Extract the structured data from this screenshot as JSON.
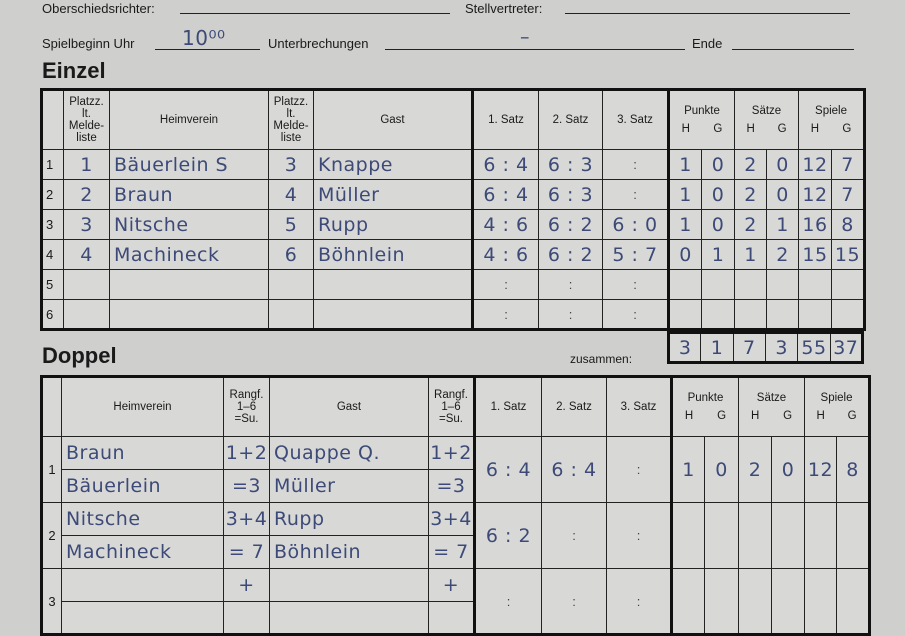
{
  "header": {
    "referee_label": "Oberschiedsrichter:",
    "deputy_label": "Stellvertreter:",
    "start_label": "Spielbeginn Uhr",
    "start_value": "10⁰⁰",
    "interruptions_label": "Unterbrechungen",
    "interruptions_value": "–",
    "end_label": "Ende"
  },
  "einzel": {
    "title": "Einzel",
    "columns": {
      "rank": "Platzz. lt. Melde- liste",
      "home": "Heimverein",
      "guest": "Gast",
      "set1": "1. Satz",
      "set2": "2. Satz",
      "set3": "3. Satz",
      "punkte": "Punkte",
      "saetze": "Sätze",
      "spiele": "Spiele",
      "h": "H",
      "g": "G"
    },
    "rows": [
      {
        "no": "1",
        "home_rank": "1",
        "home": "Bäuerlein S",
        "guest_rank": "3",
        "guest": "Knappe",
        "sets": [
          "6 : 4",
          "6 : 3",
          ":"
        ],
        "punkte": [
          "1",
          "0"
        ],
        "saetze": [
          "2",
          "0"
        ],
        "spiele": [
          "12",
          "7"
        ]
      },
      {
        "no": "2",
        "home_rank": "2",
        "home": "Braun",
        "guest_rank": "4",
        "guest": "Müller",
        "sets": [
          "6 : 4",
          "6 : 3",
          ":"
        ],
        "punkte": [
          "1",
          "0"
        ],
        "saetze": [
          "2",
          "0"
        ],
        "spiele": [
          "12",
          "7"
        ]
      },
      {
        "no": "3",
        "home_rank": "3",
        "home": "Nitsche",
        "guest_rank": "5",
        "guest": "Rupp",
        "sets": [
          "4 : 6",
          "6 : 2",
          "6 : 0"
        ],
        "punkte": [
          "1",
          "0"
        ],
        "saetze": [
          "2",
          "1"
        ],
        "spiele": [
          "16",
          "8"
        ]
      },
      {
        "no": "4",
        "home_rank": "4",
        "home": "Machineck",
        "guest_rank": "6",
        "guest": "Böhnlein",
        "sets": [
          "4 : 6",
          "6 : 2",
          "5 : 7"
        ],
        "punkte": [
          "0",
          "1"
        ],
        "saetze": [
          "1",
          "2"
        ],
        "spiele": [
          "15",
          "15"
        ]
      },
      {
        "no": "5",
        "home_rank": "",
        "home": "",
        "guest_rank": "",
        "guest": "",
        "sets": [
          ":",
          ":",
          ":"
        ],
        "punkte": [
          "",
          ""
        ],
        "saetze": [
          "",
          ""
        ],
        "spiele": [
          "",
          ""
        ]
      },
      {
        "no": "6",
        "home_rank": "",
        "home": "",
        "guest_rank": "",
        "guest": "",
        "sets": [
          ":",
          ":",
          ":"
        ],
        "punkte": [
          "",
          ""
        ],
        "saetze": [
          "",
          ""
        ],
        "spiele": [
          "",
          ""
        ]
      }
    ],
    "total_label": "zusammen:",
    "totals": [
      "3",
      "1",
      "7",
      "3",
      "55",
      "37"
    ]
  },
  "doppel": {
    "title": "Doppel",
    "columns": {
      "home": "Heimverein",
      "rank": "Rangf. 1–6 =Su.",
      "guest": "Gast",
      "set1": "1. Satz",
      "set2": "2. Satz",
      "set3": "3. Satz",
      "punkte": "Punkte",
      "saetze": "Sätze",
      "spiele": "Spiele",
      "h": "H",
      "g": "G"
    },
    "rows": [
      {
        "no": "1",
        "home": [
          "Braun",
          "Bäuerlein"
        ],
        "home_rank": [
          "1+2",
          "=3"
        ],
        "guest": [
          "Quappe Q.",
          "Müller"
        ],
        "guest_rank": [
          "1+2",
          "=3"
        ],
        "sets": [
          "6 : 4",
          "6 : 4",
          ":"
        ],
        "punkte": [
          "1",
          "0"
        ],
        "saetze": [
          "2",
          "0"
        ],
        "spiele": [
          "12",
          "8"
        ]
      },
      {
        "no": "2",
        "home": [
          "Nitsche",
          "Machineck"
        ],
        "home_rank": [
          "3+4",
          "= 7"
        ],
        "guest": [
          "Rupp",
          "Böhnlein"
        ],
        "guest_rank": [
          "3+4",
          "= 7"
        ],
        "sets": [
          "6 : 2",
          ":",
          ":"
        ],
        "punkte": [
          "",
          ""
        ],
        "saetze": [
          "",
          ""
        ],
        "spiele": [
          "",
          ""
        ]
      },
      {
        "no": "3",
        "home": [
          "",
          ""
        ],
        "home_rank": [
          "+",
          ""
        ],
        "guest": [
          "",
          ""
        ],
        "guest_rank": [
          "+",
          ""
        ],
        "sets": [
          ":",
          ":",
          ":"
        ],
        "punkte": [
          "",
          ""
        ],
        "saetze": [
          "",
          ""
        ],
        "spiele": [
          "",
          ""
        ]
      }
    ]
  }
}
